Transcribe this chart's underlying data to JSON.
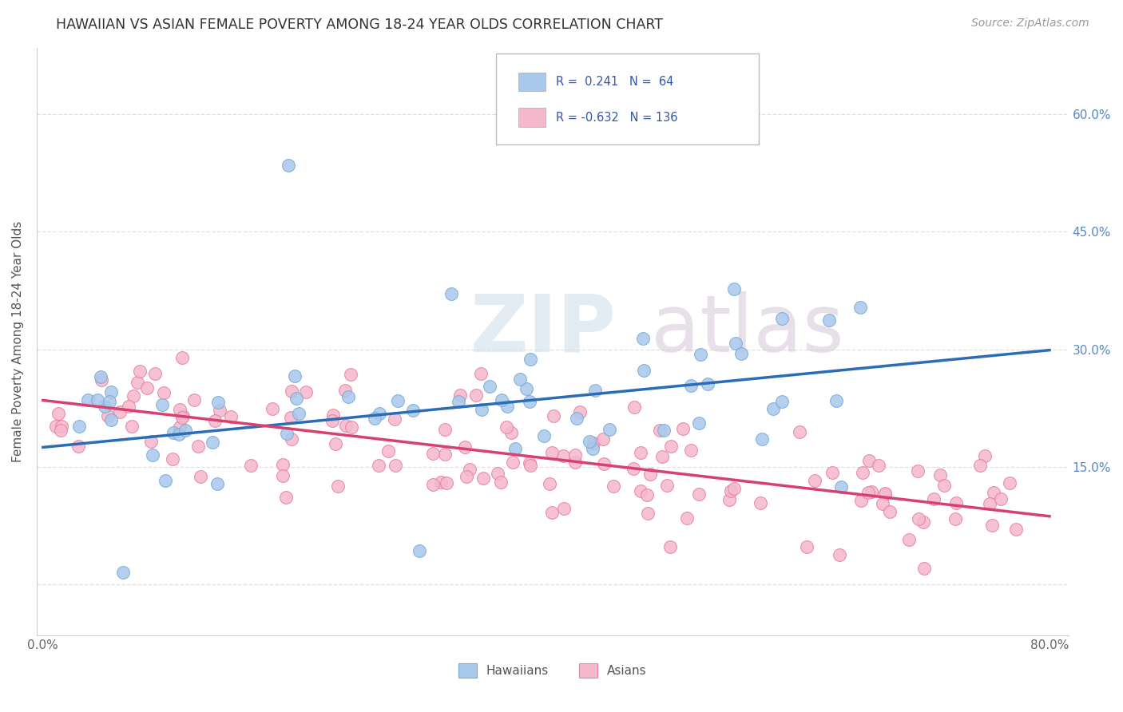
{
  "title": "HAWAIIAN VS ASIAN FEMALE POVERTY AMONG 18-24 YEAR OLDS CORRELATION CHART",
  "source": "Source: ZipAtlas.com",
  "ylabel": "Female Poverty Among 18-24 Year Olds",
  "hawaiian_R": 0.241,
  "hawaiian_N": 64,
  "asian_R": -0.632,
  "asian_N": 136,
  "hawaiian_color": "#A8C8EC",
  "hawaiian_edge_color": "#7AAAD4",
  "asian_color": "#F5B8CC",
  "asian_edge_color": "#E880A0",
  "hawaiian_line_color": "#2B6CB8",
  "asian_line_color": "#D84070",
  "watermark_zip": "ZIP",
  "watermark_atlas": "atlas",
  "watermark_color": "#D0DCE8",
  "legend_blue_color": "#4472C4",
  "legend_r_color": "#4472C4",
  "legend_n_color": "#333333",
  "background_color": "#FFFFFF",
  "grid_color": "#CCCCCC",
  "haw_line_intercept": 0.175,
  "haw_line_slope": 0.155,
  "asi_line_intercept": 0.235,
  "asi_line_slope": -0.185
}
